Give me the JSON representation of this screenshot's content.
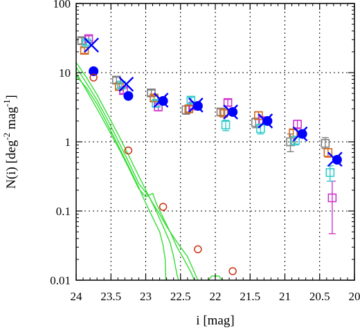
{
  "chart_data": {
    "type": "scatter",
    "xlabel": "i [mag]",
    "ylabel": {
      "main": "N(i) [deg",
      "sup1": "-2",
      "mid": " mag",
      "sup2": "-1",
      "end": "]"
    },
    "xlim": [
      24,
      20
    ],
    "ylim": [
      0.01,
      100
    ],
    "yscale": "log",
    "grid": true,
    "x_ticks": [
      {
        "value": 24,
        "label": "24"
      },
      {
        "value": 23.5,
        "label": "23.5"
      },
      {
        "value": 23,
        "label": "23"
      },
      {
        "value": 22.5,
        "label": "22.5"
      },
      {
        "value": 22,
        "label": "22"
      },
      {
        "value": 21.5,
        "label": "21.5"
      },
      {
        "value": 21,
        "label": "21"
      },
      {
        "value": 20.5,
        "label": "20.5"
      },
      {
        "value": 20,
        "label": "20"
      }
    ],
    "y_ticks": [
      {
        "value": 0.01,
        "label": "0.01"
      },
      {
        "value": 0.1,
        "label": "0.1"
      },
      {
        "value": 1,
        "label": "1"
      },
      {
        "value": 10,
        "label": "10"
      },
      {
        "value": 100,
        "label": "100"
      }
    ],
    "colors": {
      "gray": "#808080",
      "orange": "#d2691e",
      "magenta": "#cc33cc",
      "cyan": "#33cccc",
      "blue": "#0000ff",
      "green": "#33dd33",
      "red": "#cc2200"
    },
    "series": [
      {
        "marker": "square",
        "color": "gray",
        "points": [
          {
            "x": 23.92,
            "y": 29,
            "err": [
              26,
              32
            ]
          },
          {
            "x": 23.42,
            "y": 7.8,
            "err": [
              7.0,
              8.6
            ]
          },
          {
            "x": 22.92,
            "y": 5.1,
            "err": [
              4.6,
              5.6
            ]
          },
          {
            "x": 22.42,
            "y": 2.9,
            "err": [
              2.5,
              3.3
            ]
          },
          {
            "x": 21.92,
            "y": 2.7,
            "err": [
              2.4,
              3.0
            ]
          },
          {
            "x": 21.42,
            "y": 1.9,
            "err": [
              1.6,
              2.2
            ]
          },
          {
            "x": 20.92,
            "y": 1.0,
            "err": [
              0.72,
              1.3
            ]
          },
          {
            "x": 20.42,
            "y": 0.95,
            "err": [
              0.8,
              1.15
            ]
          }
        ]
      },
      {
        "marker": "square",
        "color": "orange",
        "points": [
          {
            "x": 23.88,
            "y": 21,
            "err": [
              19,
              23
            ]
          },
          {
            "x": 23.38,
            "y": 6.3,
            "err": [
              5.8,
              6.9
            ]
          },
          {
            "x": 22.88,
            "y": 4.3,
            "err": [
              3.9,
              4.7
            ]
          },
          {
            "x": 22.38,
            "y": 3.0,
            "err": [
              2.7,
              3.3
            ]
          },
          {
            "x": 21.88,
            "y": 2.6,
            "err": [
              2.4,
              2.9
            ]
          },
          {
            "x": 21.38,
            "y": 2.4,
            "err": [
              2.1,
              2.7
            ]
          },
          {
            "x": 20.88,
            "y": 1.35,
            "err": [
              1.2,
              1.5
            ]
          },
          {
            "x": 20.38,
            "y": 0.7,
            "err": [
              0.6,
              0.8
            ]
          }
        ]
      },
      {
        "marker": "square",
        "color": "magenta",
        "points": [
          {
            "x": 23.82,
            "y": 31,
            "err": [
              29,
              34
            ]
          },
          {
            "x": 23.32,
            "y": 5.5,
            "err": [
              5.0,
              6.0
            ]
          },
          {
            "x": 22.82,
            "y": 3.2,
            "err": [
              2.8,
              3.6
            ]
          },
          {
            "x": 22.32,
            "y": 3.3,
            "err": [
              3.0,
              3.6
            ]
          },
          {
            "x": 21.82,
            "y": 3.7,
            "err": [
              3.3,
              4.1
            ]
          },
          {
            "x": 21.32,
            "y": 2.0,
            "err": [
              1.8,
              2.3
            ]
          },
          {
            "x": 20.82,
            "y": 1.8,
            "err": [
              1.55,
              2.05
            ]
          },
          {
            "x": 20.32,
            "y": 0.155,
            "err": [
              0.047,
              0.27
            ]
          }
        ]
      },
      {
        "marker": "square",
        "color": "cyan",
        "points": [
          {
            "x": 23.85,
            "y": 27,
            "err": [
              25,
              29
            ]
          },
          {
            "x": 23.35,
            "y": 6.6,
            "err": [
              6.1,
              7.1
            ]
          },
          {
            "x": 22.85,
            "y": 3.6,
            "err": [
              3.2,
              4.0
            ]
          },
          {
            "x": 22.35,
            "y": 4.0,
            "err": [
              3.6,
              4.4
            ]
          },
          {
            "x": 21.85,
            "y": 1.75,
            "err": [
              1.45,
              2.05
            ]
          },
          {
            "x": 21.35,
            "y": 1.55,
            "err": [
              1.3,
              1.8
            ]
          },
          {
            "x": 20.85,
            "y": 1.05,
            "err": [
              0.9,
              1.2
            ]
          },
          {
            "x": 20.35,
            "y": 0.36,
            "err": [
              0.27,
              0.45
            ]
          }
        ]
      },
      {
        "marker": "x",
        "color": "blue",
        "points": [
          {
            "x": 23.78,
            "y": 25
          },
          {
            "x": 23.28,
            "y": 6.8
          },
          {
            "x": 22.78,
            "y": 4.0
          },
          {
            "x": 22.28,
            "y": 3.4
          },
          {
            "x": 21.78,
            "y": 2.7
          },
          {
            "x": 21.28,
            "y": 2.0
          },
          {
            "x": 20.78,
            "y": 1.3
          },
          {
            "x": 20.28,
            "y": 0.56
          }
        ]
      },
      {
        "marker": "filled-circle",
        "color": "blue",
        "points": [
          {
            "x": 23.75,
            "y": 10.5
          },
          {
            "x": 23.25,
            "y": 4.6
          },
          {
            "x": 22.75,
            "y": 3.9
          },
          {
            "x": 22.25,
            "y": 3.3
          },
          {
            "x": 21.75,
            "y": 2.7
          },
          {
            "x": 21.25,
            "y": 2.0
          },
          {
            "x": 20.75,
            "y": 1.3
          },
          {
            "x": 20.25,
            "y": 0.55
          }
        ]
      },
      {
        "marker": "open-circle",
        "color": "red",
        "points": [
          {
            "x": 23.75,
            "y": 8.5
          },
          {
            "x": 23.25,
            "y": 0.75
          },
          {
            "x": 22.75,
            "y": 0.115
          },
          {
            "x": 22.25,
            "y": 0.028
          },
          {
            "x": 21.75,
            "y": 0.0135
          }
        ]
      }
    ],
    "curves": [
      {
        "color": "green",
        "points": [
          [
            24.0,
            14
          ],
          [
            23.85,
            8.5
          ],
          [
            23.7,
            4.8
          ],
          [
            23.55,
            2.5
          ],
          [
            23.4,
            1.3
          ],
          [
            23.25,
            0.65
          ],
          [
            23.1,
            0.32
          ],
          [
            22.95,
            0.16
          ],
          [
            22.85,
            0.1
          ],
          [
            22.75,
            0.06
          ],
          [
            22.65,
            0.035
          ],
          [
            22.6,
            0.022
          ],
          [
            22.55,
            0.012
          ],
          [
            22.53,
            0.01
          ]
        ]
      },
      {
        "color": "green",
        "points": [
          [
            24.0,
            12
          ],
          [
            23.85,
            7.0
          ],
          [
            23.7,
            4.0
          ],
          [
            23.55,
            2.1
          ],
          [
            23.4,
            1.05
          ],
          [
            23.25,
            0.52
          ],
          [
            23.1,
            0.25
          ],
          [
            22.95,
            0.16
          ],
          [
            22.9,
            0.13
          ],
          [
            22.8,
            0.09
          ],
          [
            22.7,
            0.06
          ],
          [
            22.6,
            0.042
          ],
          [
            22.5,
            0.03
          ],
          [
            22.4,
            0.022
          ],
          [
            22.3,
            0.013
          ],
          [
            22.25,
            0.01
          ]
        ]
      },
      {
        "color": "green",
        "points": [
          [
            24.0,
            10
          ],
          [
            23.85,
            5.5
          ],
          [
            23.7,
            3.0
          ],
          [
            23.55,
            1.6
          ],
          [
            23.4,
            0.85
          ],
          [
            23.25,
            0.43
          ],
          [
            23.1,
            0.21
          ],
          [
            23.0,
            0.16
          ],
          [
            22.9,
            0.18
          ],
          [
            22.85,
            0.13
          ],
          [
            22.75,
            0.08
          ],
          [
            22.65,
            0.05
          ],
          [
            22.55,
            0.03
          ],
          [
            22.45,
            0.02
          ],
          [
            22.35,
            0.013
          ],
          [
            22.3,
            0.01
          ]
        ]
      },
      {
        "color": "green",
        "points": [
          [
            24.0,
            9
          ],
          [
            23.85,
            6.0
          ],
          [
            23.7,
            3.5
          ],
          [
            23.55,
            1.8
          ],
          [
            23.4,
            0.9
          ],
          [
            23.25,
            0.45
          ],
          [
            23.1,
            0.22
          ],
          [
            23.0,
            0.13
          ],
          [
            22.9,
            0.08
          ],
          [
            22.8,
            0.05
          ],
          [
            22.75,
            0.032
          ],
          [
            22.72,
            0.02
          ],
          [
            22.71,
            0.01
          ]
        ]
      },
      {
        "color": "green",
        "points": [
          [
            22.1,
            0.01
          ],
          [
            22.05,
            0.0115
          ],
          [
            21.95,
            0.0115
          ],
          [
            21.9,
            0.01
          ]
        ]
      }
    ]
  }
}
